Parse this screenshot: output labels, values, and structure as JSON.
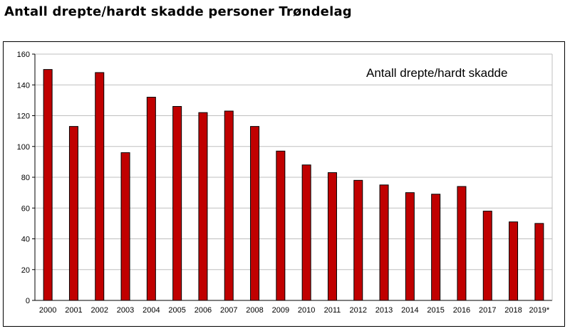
{
  "page": {
    "title": "Antall drepte/hardt skadde personer Trøndelag"
  },
  "chart_data": {
    "type": "bar",
    "title": "Antall drepte/hardt skadde personer Trøndelag",
    "xlabel": "",
    "ylabel": "",
    "ylim": [
      0,
      160
    ],
    "yticks": [
      0,
      20,
      40,
      60,
      80,
      100,
      120,
      140,
      160
    ],
    "grid": true,
    "legend": "top-right",
    "bar_color": "#C00000",
    "categories": [
      "2000",
      "2001",
      "2002",
      "2003",
      "2004",
      "2005",
      "2006",
      "2007",
      "2008",
      "2009",
      "2010",
      "2011",
      "2012",
      "2013",
      "2014",
      "2015",
      "2016",
      "2017",
      "2018",
      "2019*"
    ],
    "series": [
      {
        "name": "Antall drepte/hardt skadde",
        "values": [
          150,
          113,
          148,
          96,
          132,
          126,
          122,
          123,
          113,
          97,
          88,
          83,
          78,
          75,
          70,
          69,
          74,
          58,
          51,
          50
        ]
      }
    ]
  }
}
